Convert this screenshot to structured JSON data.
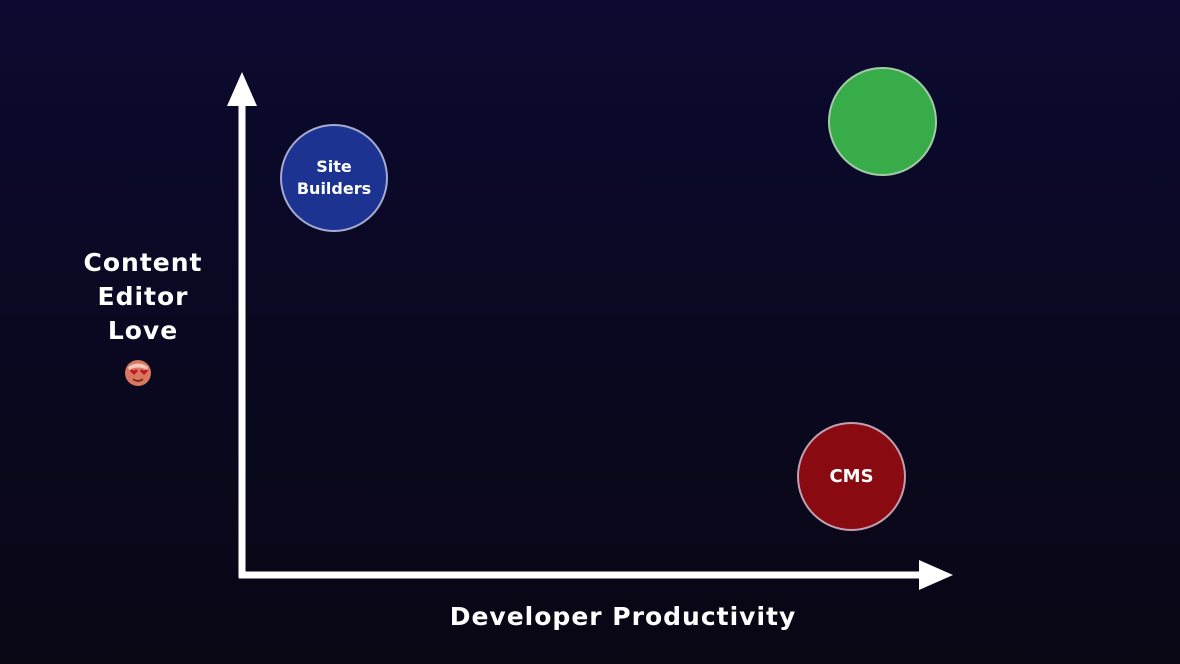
{
  "axes": {
    "y_label_lines": [
      "Content",
      "Editor",
      "Love"
    ],
    "y_label_emoji": "heart-eyes-face-emoji",
    "x_label": "Developer Productivity"
  },
  "bubbles": [
    {
      "id": "site-builders",
      "label_lines": [
        "Site",
        "Builders"
      ],
      "color": "#1d3391"
    },
    {
      "id": "unlabeled",
      "label_lines": [],
      "color": "#38ac49"
    },
    {
      "id": "cms",
      "label_lines": [
        "CMS"
      ],
      "color": "#8a0a12"
    }
  ],
  "colors": {
    "background_top": "#0c0a30",
    "background_bottom": "#090714",
    "axis": "#ffffff"
  }
}
